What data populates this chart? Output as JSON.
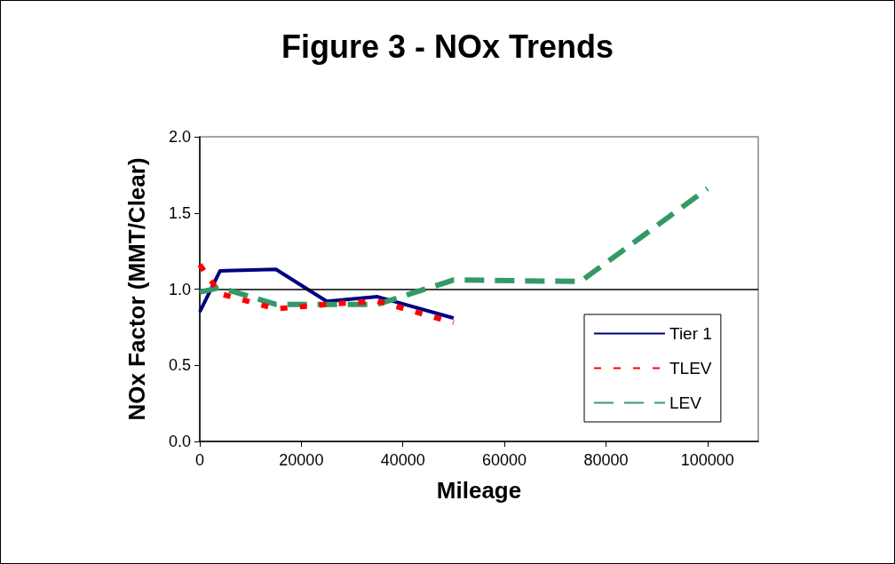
{
  "chart_data": {
    "type": "line",
    "title": "Figure 3 - NOx Trends",
    "xlabel": "Mileage",
    "ylabel": "NOx Factor (MMT/Clear)",
    "xlim": [
      0,
      110000
    ],
    "xticks": [
      0,
      20000,
      40000,
      60000,
      80000,
      100000
    ],
    "ylim": [
      0,
      2
    ],
    "yticks": [
      {
        "value": 0,
        "label": "0.0"
      },
      {
        "value": 0.5,
        "label": "0.5"
      },
      {
        "value": 1,
        "label": "1.0"
      },
      {
        "value": 1.5,
        "label": "1.5"
      },
      {
        "value": 2,
        "label": "2.0"
      }
    ],
    "grid": false,
    "legend": "bottom right",
    "marker": "none",
    "ref_lines": [
      {
        "axis": "y",
        "value": 1,
        "color": "#000000"
      }
    ],
    "series": [
      {
        "name": "Tier 1",
        "color": "#000080",
        "line_style": "solid",
        "x": [
          0,
          4000,
          15000,
          25000,
          35000,
          50000
        ],
        "values": [
          0.85,
          1.12,
          1.13,
          0.92,
          0.95,
          0.81
        ]
      },
      {
        "name": "TLEV",
        "color": "#ff0000",
        "line_style": "dotted",
        "x": [
          0,
          4000,
          15000,
          25000,
          35000,
          50000
        ],
        "values": [
          1.16,
          0.97,
          0.87,
          0.9,
          0.92,
          0.78
        ]
      },
      {
        "name": "LEV",
        "color": "#339966",
        "line_style": "dashed",
        "x": [
          0,
          4000,
          15000,
          25000,
          35000,
          50000,
          75000,
          100000
        ],
        "values": [
          0.98,
          1.01,
          0.9,
          0.9,
          0.9,
          1.06,
          1.05,
          1.66
        ]
      }
    ]
  }
}
